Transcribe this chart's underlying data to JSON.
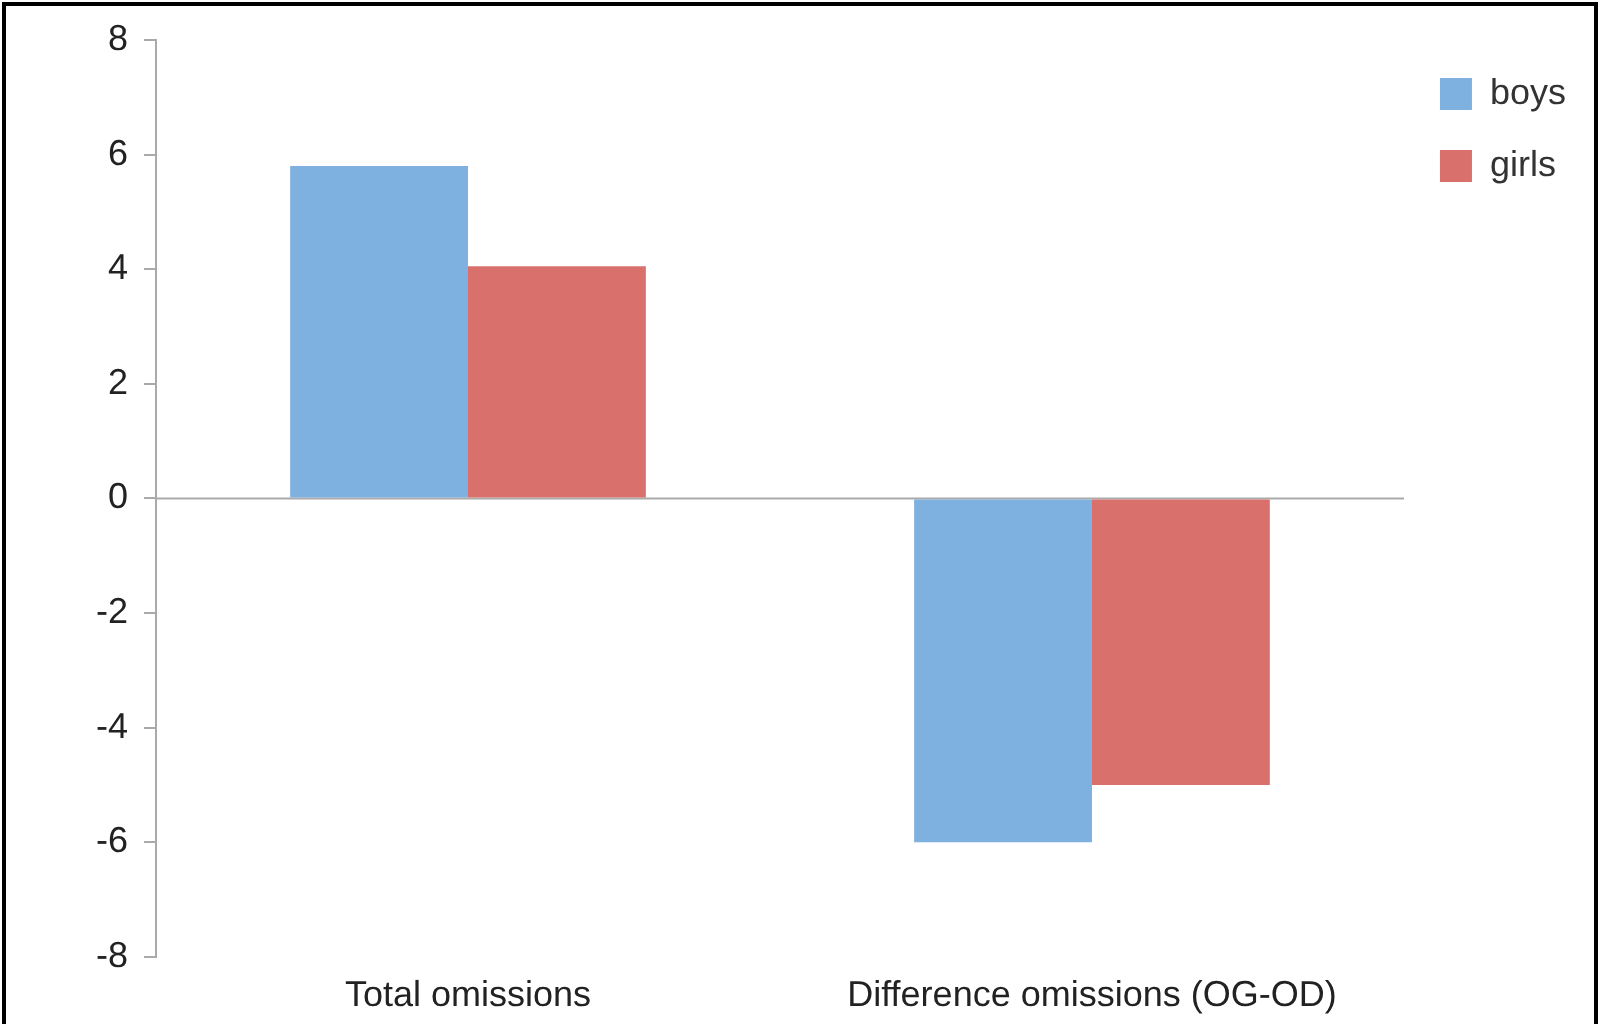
{
  "chart_data": {
    "type": "bar",
    "categories": [
      "Total omissions",
      "Difference omissions (OG-OD)"
    ],
    "series": [
      {
        "name": "boys",
        "color": "#7eb0e0",
        "values": [
          5.8,
          -6
        ]
      },
      {
        "name": "girls",
        "color": "#d9706c",
        "values": [
          4.05,
          -5
        ]
      }
    ],
    "ylim": [
      -8,
      8
    ],
    "yticks": [
      -8,
      -6,
      -4,
      -2,
      0,
      2,
      4,
      6,
      8
    ],
    "ref_lines": [
      {
        "axis": "y",
        "value": 0,
        "color": "#aaaaaa"
      }
    ],
    "grid": false,
    "legend": "top right"
  }
}
